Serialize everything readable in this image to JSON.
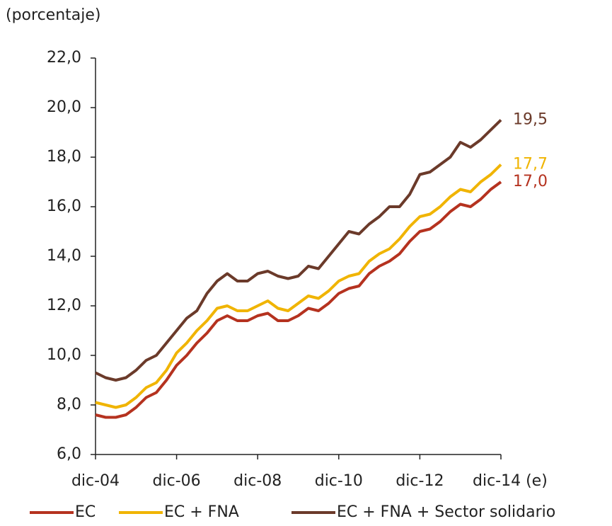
{
  "chart_data": {
    "type": "line",
    "ylabel": "(porcentaje)",
    "categories": [
      "dic-04",
      null,
      null,
      null,
      null,
      null,
      null,
      null,
      "dic-06",
      null,
      null,
      null,
      null,
      null,
      null,
      null,
      "dic-08",
      null,
      null,
      null,
      null,
      null,
      null,
      null,
      "dic-10",
      null,
      null,
      null,
      null,
      null,
      null,
      null,
      "dic-12",
      null,
      null,
      null,
      null,
      null,
      null,
      null,
      "dic-14 (e)"
    ],
    "series": [
      {
        "name": "EC",
        "color": "#b5321f",
        "values": [
          7.6,
          7.5,
          7.5,
          7.6,
          7.9,
          8.3,
          8.5,
          9.0,
          9.6,
          10.0,
          10.5,
          10.9,
          11.4,
          11.6,
          11.4,
          11.4,
          11.6,
          11.7,
          11.4,
          11.4,
          11.6,
          11.9,
          11.8,
          12.1,
          12.5,
          12.7,
          12.8,
          13.3,
          13.6,
          13.8,
          14.1,
          14.6,
          15.0,
          15.1,
          15.4,
          15.8,
          16.1,
          16.0,
          16.3,
          16.7,
          17.0
        ],
        "value_labels": [
          null,
          null,
          null,
          null,
          null,
          null,
          null,
          null,
          null,
          null,
          null,
          null,
          null,
          null,
          null,
          null,
          null,
          null,
          null,
          null,
          null,
          null,
          null,
          null,
          null,
          null,
          null,
          null,
          null,
          null,
          null,
          null,
          null,
          null,
          null,
          null,
          null,
          null,
          null,
          null,
          "17,0"
        ]
      },
      {
        "name": "EC + FNA",
        "color": "#f0b400",
        "values": [
          8.1,
          8.0,
          7.9,
          8.0,
          8.3,
          8.7,
          8.9,
          9.4,
          10.1,
          10.5,
          11.0,
          11.4,
          11.9,
          12.0,
          11.8,
          11.8,
          12.0,
          12.2,
          11.9,
          11.8,
          12.1,
          12.4,
          12.3,
          12.6,
          13.0,
          13.2,
          13.3,
          13.8,
          14.1,
          14.3,
          14.7,
          15.2,
          15.6,
          15.7,
          16.0,
          16.4,
          16.7,
          16.6,
          17.0,
          17.3,
          17.7
        ],
        "value_labels": [
          null,
          null,
          null,
          null,
          null,
          null,
          null,
          null,
          null,
          null,
          null,
          null,
          null,
          null,
          null,
          null,
          null,
          null,
          null,
          null,
          null,
          null,
          null,
          null,
          null,
          null,
          null,
          null,
          null,
          null,
          null,
          null,
          null,
          null,
          null,
          null,
          null,
          null,
          null,
          null,
          "17,7"
        ]
      },
      {
        "name": "EC + FNA + Sector solidario",
        "color": "#6b3a2a",
        "values": [
          9.3,
          9.1,
          9.0,
          9.1,
          9.4,
          9.8,
          10.0,
          10.5,
          11.0,
          11.5,
          11.8,
          12.5,
          13.0,
          13.3,
          13.0,
          13.0,
          13.3,
          13.4,
          13.2,
          13.1,
          13.2,
          13.6,
          13.5,
          14.0,
          14.5,
          15.0,
          14.9,
          15.3,
          15.6,
          16.0,
          16.0,
          16.5,
          17.3,
          17.4,
          17.7,
          18.0,
          18.6,
          18.4,
          18.7,
          19.1,
          19.5
        ],
        "value_labels": [
          null,
          null,
          null,
          null,
          null,
          null,
          null,
          null,
          null,
          null,
          null,
          null,
          null,
          null,
          null,
          null,
          null,
          null,
          null,
          null,
          null,
          null,
          null,
          null,
          null,
          null,
          null,
          null,
          null,
          null,
          null,
          null,
          null,
          null,
          null,
          null,
          null,
          null,
          null,
          null,
          "19,5"
        ]
      }
    ],
    "ylim": [
      6,
      22
    ],
    "yticks": [
      {
        "value": 6,
        "label": "6,0"
      },
      {
        "value": 8,
        "label": "8,0"
      },
      {
        "value": 10,
        "label": "10,0"
      },
      {
        "value": 12,
        "label": "12,0"
      },
      {
        "value": 14,
        "label": "14,0"
      },
      {
        "value": 16,
        "label": "16,0"
      },
      {
        "value": 18,
        "label": "18,0"
      },
      {
        "value": 20,
        "label": "20,0"
      },
      {
        "value": 22,
        "label": "22,0"
      }
    ]
  }
}
